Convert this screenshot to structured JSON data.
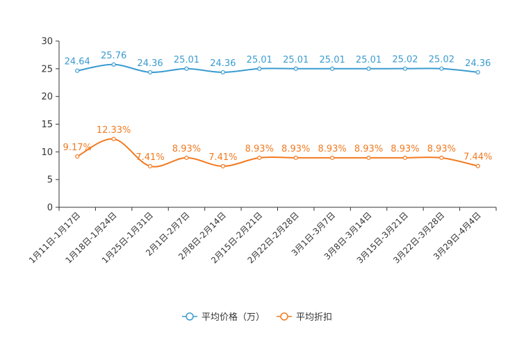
{
  "chart_data": {
    "type": "line",
    "categories": [
      "1月11日-1月17日",
      "1月18日-1月24日",
      "1月25日-1月31日",
      "2月1日-2月7日",
      "2月8日-2月14日",
      "2月15日-2月21日",
      "2月22日-2月28日",
      "3月1日-3月7日",
      "3月8日-3月14日",
      "3月15日-3月21日",
      "3月22日-3月28日",
      "3月29日-4月4日"
    ],
    "ylim": [
      0,
      30
    ],
    "yticks": [
      0,
      5,
      10,
      15,
      20,
      25,
      30
    ],
    "series": [
      {
        "name": "平均价格（万）",
        "color": "#3a9bd0",
        "values": [
          24.64,
          25.76,
          24.36,
          25.01,
          24.36,
          25.01,
          25.01,
          25.01,
          25.01,
          25.02,
          25.02,
          24.36
        ],
        "labels": [
          "24.64",
          "25.76",
          "24.36",
          "25.01",
          "24.36",
          "25.01",
          "25.01",
          "25.01",
          "25.01",
          "25.02",
          "25.02",
          "24.36"
        ]
      },
      {
        "name": "平均折扣",
        "color": "#f27a20",
        "values": [
          9.17,
          12.33,
          7.41,
          8.93,
          7.41,
          8.93,
          8.93,
          8.93,
          8.93,
          8.93,
          8.93,
          7.44
        ],
        "labels": [
          "9.17%",
          "12.33%",
          "7.41%",
          "8.93%",
          "7.41%",
          "8.93%",
          "8.93%",
          "8.93%",
          "8.93%",
          "8.93%",
          "8.93%",
          "7.44%"
        ]
      }
    ],
    "legend": "bottom-center"
  }
}
